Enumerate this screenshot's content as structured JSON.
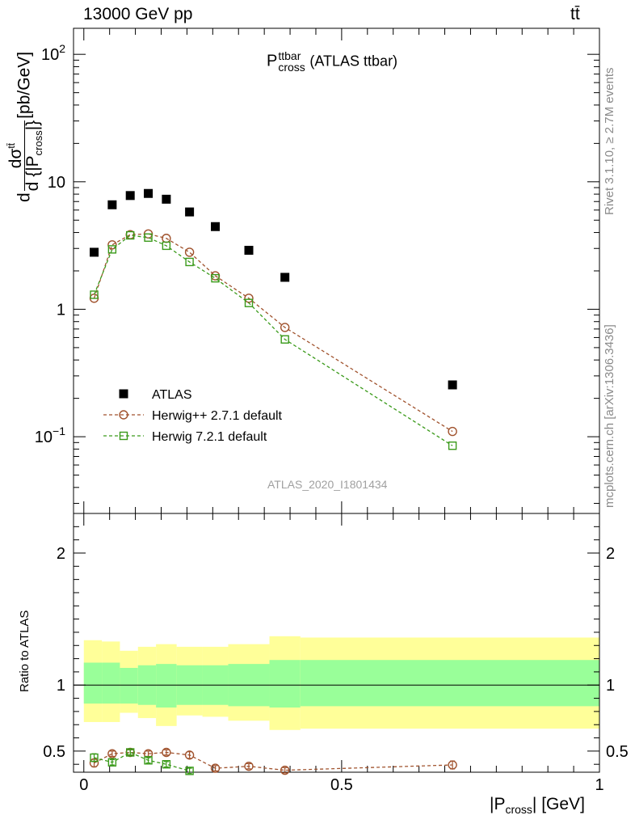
{
  "header": {
    "left": "13000 GeV pp",
    "right": "tt̄"
  },
  "plot_title": {
    "symbol": "P",
    "sup": "ttbar",
    "sub": "cross",
    "suffix": "(ATLAS ttbar)"
  },
  "watermark": "ATLAS_2020_I1801434",
  "side_texts": {
    "rivet": "Rivet 3.1.10, ≥ 2.7M events",
    "source": "mcplots.cern.ch [arXiv:1306.3436]"
  },
  "main_ylabel": {
    "d1": "d",
    "sigma": "dσ",
    "tt": "tt̄",
    "den": "d {|P",
    "den_sub": "cross",
    "den_end": "|}",
    "unit": "[pb/GeV]"
  },
  "ratio_ylabel": "Ratio to ATLAS",
  "xlabel": {
    "open": "|P",
    "sub": "cross",
    "close": "| [GeV]"
  },
  "colors": {
    "data": "#000000",
    "herwigpp": "#a0522d",
    "herwig7": "#3a9a1a",
    "band_outer": "#ffff99",
    "band_inner": "#99ff99"
  },
  "chart_data": [
    {
      "type": "scatter",
      "yscale": "log",
      "xlim": [
        -0.02,
        1.0
      ],
      "ylim": [
        0.025,
        160
      ],
      "legend_position": "bottom-left",
      "y_ticks": [
        {
          "value": 0.1,
          "base": "10",
          "exp": "−1"
        },
        {
          "value": 1,
          "base": "1",
          "exp": ""
        },
        {
          "value": 10,
          "base": "10",
          "exp": ""
        },
        {
          "value": 100,
          "base": "10",
          "exp": "2"
        }
      ],
      "series": [
        {
          "name": "ATLAS",
          "key": "data",
          "x": [
            0.02,
            0.055,
            0.09,
            0.125,
            0.16,
            0.205,
            0.255,
            0.32,
            0.39,
            0.715
          ],
          "y": [
            2.8,
            6.6,
            7.8,
            8.1,
            7.3,
            5.8,
            4.45,
            2.9,
            1.78,
            0.255
          ]
        },
        {
          "name": "Herwig++ 2.7.1 default",
          "key": "herwigpp",
          "x": [
            0.02,
            0.055,
            0.09,
            0.125,
            0.16,
            0.205,
            0.255,
            0.32,
            0.39,
            0.715
          ],
          "y": [
            1.22,
            3.2,
            3.85,
            3.9,
            3.6,
            2.8,
            1.83,
            1.22,
            0.72,
            0.11
          ]
        },
        {
          "name": "Herwig 7.2.1 default",
          "key": "herwig7",
          "x": [
            0.02,
            0.055,
            0.09,
            0.125,
            0.16,
            0.205,
            0.255,
            0.32,
            0.39,
            0.715
          ],
          "y": [
            1.3,
            2.95,
            3.8,
            3.65,
            3.15,
            2.35,
            1.75,
            1.12,
            0.58,
            0.085
          ]
        }
      ]
    },
    {
      "type": "line",
      "ylim": [
        0.34,
        2.3
      ],
      "xlim": [
        -0.02,
        1.0
      ],
      "x_ticks": [
        {
          "value": 0,
          "label": "0"
        },
        {
          "value": 0.5,
          "label": "0.5"
        },
        {
          "value": 1,
          "label": "1"
        }
      ],
      "y_ticks": [
        {
          "value": 0.5,
          "label": "0.5"
        },
        {
          "value": 1,
          "label": "1"
        },
        {
          "value": 2,
          "label": "2"
        }
      ],
      "bands": {
        "edges": [
          0,
          0.035,
          0.07,
          0.105,
          0.14,
          0.18,
          0.23,
          0.28,
          0.36,
          0.42,
          1.0
        ],
        "inner_lo": [
          0.86,
          0.86,
          0.86,
          0.85,
          0.83,
          0.85,
          0.85,
          0.84,
          0.83,
          0.84
        ],
        "inner_hi": [
          1.17,
          1.17,
          1.13,
          1.15,
          1.16,
          1.15,
          1.15,
          1.16,
          1.19,
          1.19
        ],
        "outer_lo": [
          0.72,
          0.72,
          0.79,
          0.75,
          0.69,
          0.77,
          0.76,
          0.73,
          0.66,
          0.67
        ],
        "outer_hi": [
          1.34,
          1.33,
          1.26,
          1.29,
          1.31,
          1.29,
          1.29,
          1.31,
          1.37,
          1.36
        ]
      },
      "series": [
        {
          "name": "Herwig++ 2.7.1 default",
          "key": "herwigpp",
          "x": [
            0.02,
            0.055,
            0.09,
            0.125,
            0.16,
            0.205,
            0.255,
            0.32,
            0.39,
            0.715
          ],
          "y": [
            0.41,
            0.48,
            0.49,
            0.48,
            0.49,
            0.47,
            0.37,
            0.385,
            0.355,
            0.395
          ],
          "err": [
            0.03,
            0.02,
            0.02,
            0.02,
            0.02,
            0.025,
            0.02,
            0.02,
            0.02,
            0.03
          ]
        },
        {
          "name": "Herwig 7.2.1 default",
          "key": "herwig7",
          "x": [
            0.02,
            0.055,
            0.09,
            0.125,
            0.16,
            0.205
          ],
          "y": [
            0.45,
            0.415,
            0.49,
            0.43,
            0.4,
            0.35
          ],
          "err": [
            0.03,
            0.02,
            0.02,
            0.02,
            0.02,
            0.02
          ]
        }
      ]
    }
  ]
}
